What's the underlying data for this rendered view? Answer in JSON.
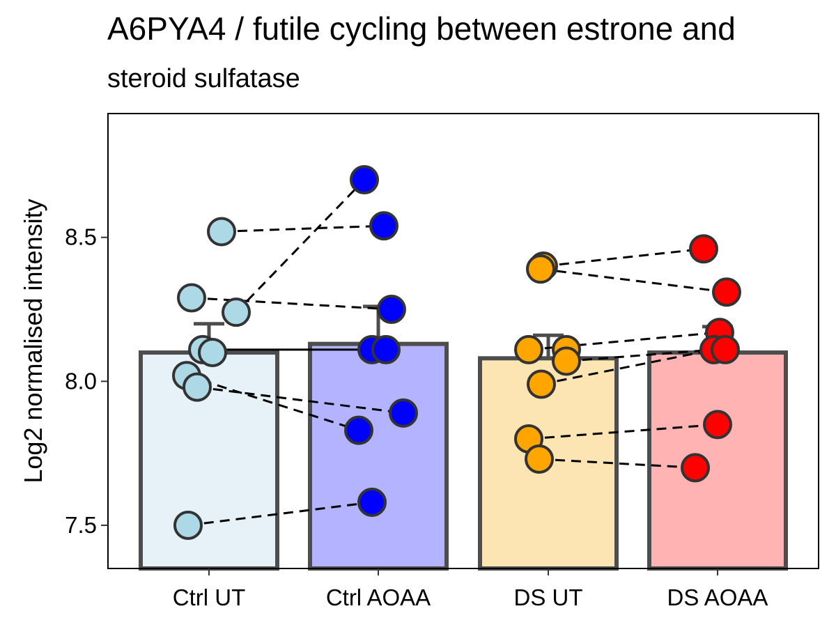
{
  "chart_data": {
    "type": "bar",
    "title": "A6PYA4 / futile cycling between estrone and",
    "subtitle": "steroid sulfatase",
    "xlabel": "",
    "ylabel": "Log2 normalised intensity",
    "ylim": [
      7.35,
      8.93
    ],
    "yticks": [
      7.5,
      8.0,
      8.5
    ],
    "ytick_labels": [
      "7.5",
      "8.0",
      "8.5"
    ],
    "grid": false,
    "legend": "none",
    "categories": [
      "Ctrl UT",
      "Ctrl AOAA",
      "DS UT",
      "DS AOAA"
    ],
    "bar_values": [
      8.1,
      8.13,
      8.08,
      8.1
    ],
    "error_upper": [
      8.2,
      8.26,
      8.16,
      8.19
    ],
    "point_values": [
      [
        8.52,
        8.29,
        8.24,
        8.11,
        8.1,
        8.02,
        7.98,
        7.5
      ],
      [
        8.7,
        8.54,
        8.25,
        8.11,
        8.11,
        7.89,
        7.83,
        7.58
      ],
      [
        8.4,
        8.39,
        8.11,
        8.11,
        8.07,
        7.99,
        7.8,
        7.73
      ],
      [
        8.46,
        8.31,
        8.17,
        8.11,
        8.11,
        7.85,
        7.7
      ]
    ],
    "paired_lines": [
      {
        "from_group": 0,
        "from": 8.52,
        "to_group": 1,
        "to": 8.54,
        "style": "dashed"
      },
      {
        "from_group": 0,
        "from": 8.24,
        "to_group": 1,
        "to": 8.7,
        "style": "dashed"
      },
      {
        "from_group": 0,
        "from": 8.29,
        "to_group": 1,
        "to": 8.25,
        "style": "dashed"
      },
      {
        "from_group": 0,
        "from": 8.11,
        "to_group": 1,
        "to": 8.11,
        "style": "solid"
      },
      {
        "from_group": 0,
        "from": 8.02,
        "to_group": 1,
        "to": 7.83,
        "style": "dashed"
      },
      {
        "from_group": 0,
        "from": 7.98,
        "to_group": 1,
        "to": 7.89,
        "style": "dashed"
      },
      {
        "from_group": 0,
        "from": 7.5,
        "to_group": 1,
        "to": 7.58,
        "style": "dashed"
      },
      {
        "from_group": 2,
        "from": 8.4,
        "to_group": 3,
        "to": 8.46,
        "style": "dashed"
      },
      {
        "from_group": 2,
        "from": 8.39,
        "to_group": 3,
        "to": 8.31,
        "style": "dashed"
      },
      {
        "from_group": 2,
        "from": 8.11,
        "to_group": 3,
        "to": 8.17,
        "style": "dashed"
      },
      {
        "from_group": 2,
        "from": 8.07,
        "to_group": 3,
        "to": 8.11,
        "style": "dashed"
      },
      {
        "from_group": 2,
        "from": 7.99,
        "to_group": 3,
        "to": 8.11,
        "style": "dashed"
      },
      {
        "from_group": 2,
        "from": 7.8,
        "to_group": 3,
        "to": 7.85,
        "style": "dashed"
      },
      {
        "from_group": 2,
        "from": 7.73,
        "to_group": 3,
        "to": 7.7,
        "style": "dashed"
      }
    ],
    "colors": {
      "bar_fill": [
        "#e6f2f8",
        "#b3b3ff",
        "#fde4b3",
        "#ffb3b3"
      ],
      "point_fill": [
        "#add8e6",
        "#0000ff",
        "#ffa500",
        "#ff0000"
      ],
      "outline": "#4d4d4d",
      "point_outline": "#333333"
    }
  }
}
